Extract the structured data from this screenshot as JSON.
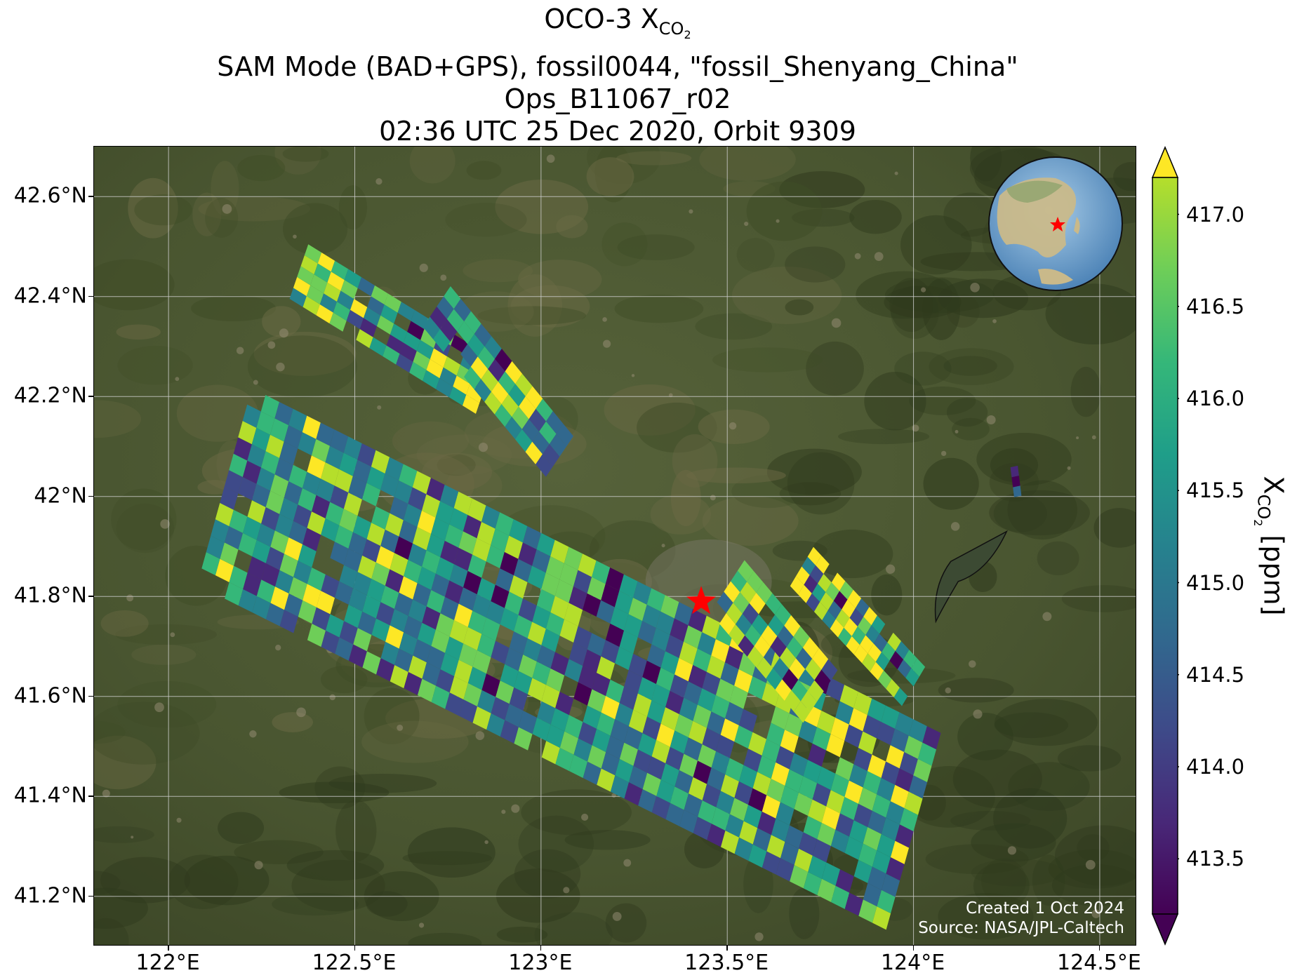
{
  "title": {
    "line1_main": "OCO-3 X",
    "line1_sub": "CO",
    "line1_sub2": "2",
    "line2": "SAM Mode (BAD+GPS), fossil0044, \"fossil_Shenyang_China\"",
    "line3": "Ops_B11067_r02",
    "line4": "02:36 UTC 25 Dec 2020, Orbit 9309"
  },
  "axes": {
    "lat_ticks": [
      "42.6°N",
      "42.4°N",
      "42.2°N",
      "42°N",
      "41.8°N",
      "41.6°N",
      "41.4°N",
      "41.2°N"
    ],
    "lat_values": [
      42.6,
      42.4,
      42.2,
      42.0,
      41.8,
      41.6,
      41.4,
      41.2
    ],
    "lon_ticks": [
      "122°E",
      "122.5°E",
      "123°E",
      "123.5°E",
      "124°E",
      "124.5°E"
    ],
    "lon_values": [
      122.0,
      122.5,
      123.0,
      123.5,
      124.0,
      124.5
    ],
    "lat_range": [
      41.1,
      42.7
    ],
    "lon_range": [
      121.8,
      124.6
    ]
  },
  "colorbar": {
    "label_main": "X",
    "label_sub": "CO",
    "label_sub2": "2",
    "label_unit": " [ppm]",
    "ticks": [
      "417.0",
      "416.5",
      "416.0",
      "415.5",
      "415.0",
      "414.5",
      "414.0",
      "413.5"
    ],
    "tick_values": [
      417.0,
      416.5,
      416.0,
      415.5,
      415.0,
      414.5,
      414.0,
      413.5
    ],
    "range": [
      413.2,
      417.2
    ],
    "colormap": "viridis",
    "extend": "both"
  },
  "target": {
    "name": "fossil_Shenyang_China",
    "lat": 41.79,
    "lon": 123.43,
    "marker": "red-star",
    "color": "#ff0000"
  },
  "credits": {
    "created": "Created 1 Oct 2024",
    "source": "Source: NASA/JPL-Caltech"
  },
  "inset_globe": {
    "marker": "red-star",
    "center_lat": 35,
    "center_lon": 123
  }
}
